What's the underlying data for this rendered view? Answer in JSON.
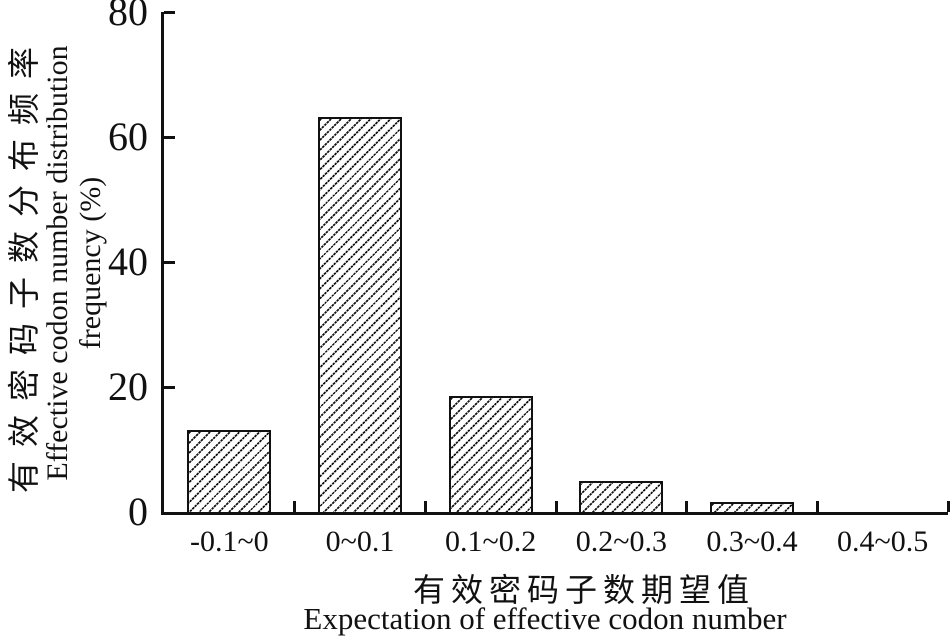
{
  "colors": {
    "ink": "#111111",
    "background": "#ffffff"
  },
  "y_axis": {
    "title_cn": "有效密码子数分布频率",
    "title_en_line1": "Effective codon number distribution",
    "title_en_line2": "frequency (%)",
    "tick_labels": [
      "0",
      "20",
      "40",
      "60",
      "80"
    ]
  },
  "x_axis": {
    "title_cn": "有效密码子数期望值",
    "title_en": "Expectation of effective codon number",
    "tick_labels": [
      "-0.1~0",
      "0~0.1",
      "0.1~0.2",
      "0.2~0.3",
      "0.3~0.4",
      "0.4~0.5"
    ]
  },
  "chart_data": {
    "type": "bar",
    "categories": [
      "-0.1~0",
      "0~0.1",
      "0.1~0.2",
      "0.2~0.3",
      "0.3~0.4",
      "0.4~0.5"
    ],
    "values": [
      13.1,
      63.2,
      18.5,
      5.0,
      1.6,
      0
    ],
    "title": "",
    "xlabel": "有效密码子数期望值 (Expectation of effective codon number)",
    "ylabel": "有效密码子数分布频率 (Effective codon number distribution frequency (%))",
    "ylim": [
      0,
      80
    ],
    "yticks": [
      0,
      20,
      40,
      60,
      80
    ],
    "grid": false,
    "legend": "none",
    "bar_style": "white fill, black 45-degree '/' hatch, black border"
  }
}
